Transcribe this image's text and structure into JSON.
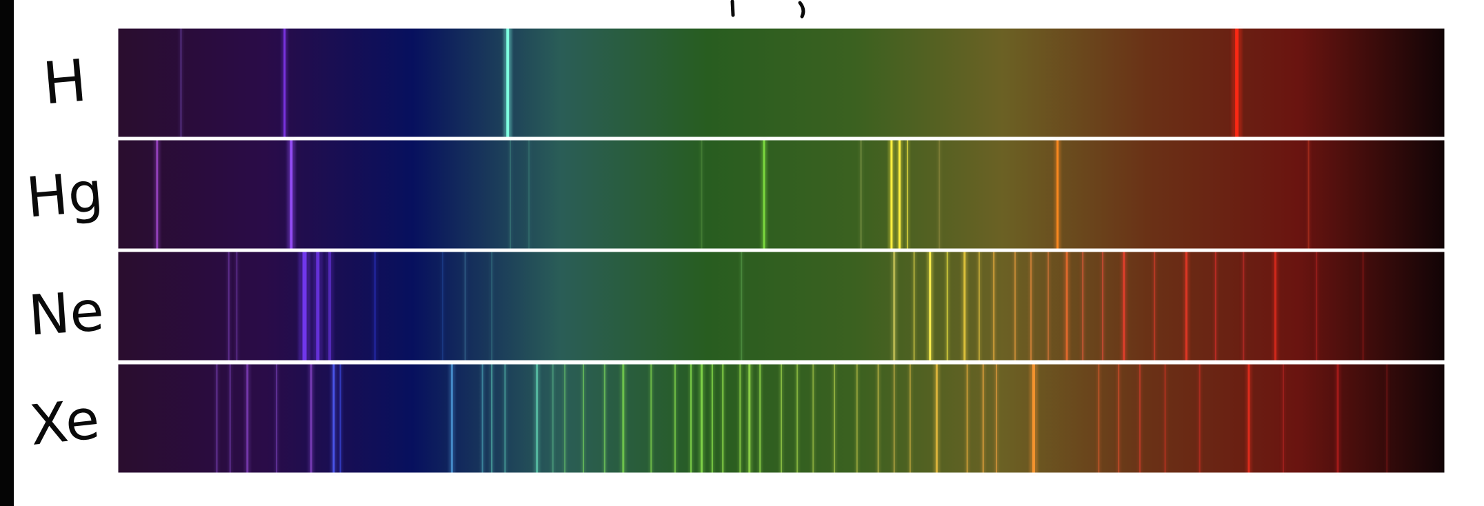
{
  "colors": {
    "background": "#ffffff",
    "left_edge": "#050505",
    "ink": "#0a0a0a",
    "band_border": "#ffffff",
    "gradient": [
      "#2a0d2e",
      "#2a0c48",
      "#07105e",
      "#2a5d57",
      "#285d20",
      "#3b6120",
      "#6b6124",
      "#6a3116",
      "#6a1410",
      "#110406"
    ]
  },
  "spectra": [
    {
      "element": "H",
      "lines": [
        {
          "pos": 0.048,
          "color": "#8a5ad8",
          "w": 2,
          "o": 0.35
        },
        {
          "pos": 0.126,
          "color": "#8c3cff",
          "w": 3,
          "o": 0.75
        },
        {
          "pos": 0.294,
          "color": "#7fffe0",
          "w": 4,
          "o": 1.0
        },
        {
          "pos": 0.843,
          "color": "#ff2a14",
          "w": 5,
          "o": 0.95
        }
      ]
    },
    {
      "element": "Hg",
      "lines": [
        {
          "pos": 0.03,
          "color": "#b050e0",
          "w": 3,
          "o": 0.7
        },
        {
          "pos": 0.131,
          "color": "#9a50ff",
          "w": 4,
          "o": 0.9
        },
        {
          "pos": 0.296,
          "color": "#4fa090",
          "w": 2,
          "o": 0.35
        },
        {
          "pos": 0.31,
          "color": "#4fa090",
          "w": 2,
          "o": 0.25
        },
        {
          "pos": 0.44,
          "color": "#6fb050",
          "w": 2,
          "o": 0.3
        },
        {
          "pos": 0.487,
          "color": "#7fe040",
          "w": 3,
          "o": 0.9
        },
        {
          "pos": 0.56,
          "color": "#a8b860",
          "w": 2,
          "o": 0.35
        },
        {
          "pos": 0.583,
          "color": "#fff040",
          "w": 3,
          "o": 1.0
        },
        {
          "pos": 0.589,
          "color": "#fff040",
          "w": 3,
          "o": 1.0
        },
        {
          "pos": 0.595,
          "color": "#e8e040",
          "w": 2,
          "o": 0.7
        },
        {
          "pos": 0.619,
          "color": "#b0a050",
          "w": 2,
          "o": 0.35
        },
        {
          "pos": 0.708,
          "color": "#ff8a20",
          "w": 3,
          "o": 0.95
        },
        {
          "pos": 0.897,
          "color": "#ff5030",
          "w": 2,
          "o": 0.3
        }
      ]
    },
    {
      "element": "Ne",
      "lines": [
        {
          "pos": 0.084,
          "color": "#9050d8",
          "w": 2,
          "o": 0.4
        },
        {
          "pos": 0.09,
          "color": "#9050d8",
          "w": 2,
          "o": 0.35
        },
        {
          "pos": 0.141,
          "color": "#7a3cff",
          "w": 6,
          "o": 0.85
        },
        {
          "pos": 0.151,
          "color": "#7a3cff",
          "w": 5,
          "o": 0.7
        },
        {
          "pos": 0.16,
          "color": "#7a3cff",
          "w": 4,
          "o": 0.5
        },
        {
          "pos": 0.194,
          "color": "#2a30c0",
          "w": 3,
          "o": 0.5
        },
        {
          "pos": 0.245,
          "color": "#3060c0",
          "w": 2,
          "o": 0.3
        },
        {
          "pos": 0.262,
          "color": "#4c8cb0",
          "w": 2,
          "o": 0.35
        },
        {
          "pos": 0.282,
          "color": "#4c9ca0",
          "w": 2,
          "o": 0.3
        },
        {
          "pos": 0.47,
          "color": "#70c060",
          "w": 2,
          "o": 0.35
        },
        {
          "pos": 0.585,
          "color": "#d8d060",
          "w": 3,
          "o": 0.7
        },
        {
          "pos": 0.6,
          "color": "#f0e050",
          "w": 2,
          "o": 0.5
        },
        {
          "pos": 0.612,
          "color": "#fff050",
          "w": 3,
          "o": 0.95
        },
        {
          "pos": 0.625,
          "color": "#e8e040",
          "w": 2,
          "o": 0.7
        },
        {
          "pos": 0.638,
          "color": "#f0d040",
          "w": 3,
          "o": 0.8
        },
        {
          "pos": 0.649,
          "color": "#e0c040",
          "w": 2,
          "o": 0.6
        },
        {
          "pos": 0.66,
          "color": "#f0b040",
          "w": 2,
          "o": 0.65
        },
        {
          "pos": 0.676,
          "color": "#f0a040",
          "w": 2,
          "o": 0.55
        },
        {
          "pos": 0.688,
          "color": "#f09040",
          "w": 2,
          "o": 0.6
        },
        {
          "pos": 0.701,
          "color": "#f08040",
          "w": 2,
          "o": 0.5
        },
        {
          "pos": 0.715,
          "color": "#ff7030",
          "w": 3,
          "o": 0.7
        },
        {
          "pos": 0.727,
          "color": "#f06040",
          "w": 2,
          "o": 0.55
        },
        {
          "pos": 0.742,
          "color": "#f05040",
          "w": 2,
          "o": 0.55
        },
        {
          "pos": 0.758,
          "color": "#ff4030",
          "w": 3,
          "o": 0.7
        },
        {
          "pos": 0.781,
          "color": "#f04030",
          "w": 2,
          "o": 0.5
        },
        {
          "pos": 0.805,
          "color": "#ff3a2a",
          "w": 3,
          "o": 0.7
        },
        {
          "pos": 0.827,
          "color": "#f03030",
          "w": 2,
          "o": 0.5
        },
        {
          "pos": 0.848,
          "color": "#e03030",
          "w": 2,
          "o": 0.45
        },
        {
          "pos": 0.872,
          "color": "#ff3020",
          "w": 3,
          "o": 0.6
        },
        {
          "pos": 0.903,
          "color": "#d02828",
          "w": 2,
          "o": 0.4
        },
        {
          "pos": 0.938,
          "color": "#c02020",
          "w": 2,
          "o": 0.3
        }
      ]
    },
    {
      "element": "Xe",
      "lines": [
        {
          "pos": 0.075,
          "color": "#9050d8",
          "w": 2,
          "o": 0.45
        },
        {
          "pos": 0.085,
          "color": "#9050d8",
          "w": 2,
          "o": 0.4
        },
        {
          "pos": 0.098,
          "color": "#9c50e0",
          "w": 3,
          "o": 0.55
        },
        {
          "pos": 0.12,
          "color": "#9050d8",
          "w": 2,
          "o": 0.45
        },
        {
          "pos": 0.146,
          "color": "#9c50e0",
          "w": 3,
          "o": 0.6
        },
        {
          "pos": 0.163,
          "color": "#5060ff",
          "w": 3,
          "o": 0.8
        },
        {
          "pos": 0.168,
          "color": "#4050f0",
          "w": 2,
          "o": 0.6
        },
        {
          "pos": 0.252,
          "color": "#50a0e0",
          "w": 3,
          "o": 0.75
        },
        {
          "pos": 0.275,
          "color": "#50b0c0",
          "w": 2,
          "o": 0.55
        },
        {
          "pos": 0.282,
          "color": "#58c0b0",
          "w": 2,
          "o": 0.6
        },
        {
          "pos": 0.292,
          "color": "#58c0b0",
          "w": 2,
          "o": 0.55
        },
        {
          "pos": 0.316,
          "color": "#60d0b0",
          "w": 3,
          "o": 0.75
        },
        {
          "pos": 0.328,
          "color": "#60c090",
          "w": 2,
          "o": 0.45
        },
        {
          "pos": 0.337,
          "color": "#70d070",
          "w": 2,
          "o": 0.5
        },
        {
          "pos": 0.351,
          "color": "#80e060",
          "w": 2,
          "o": 0.55
        },
        {
          "pos": 0.367,
          "color": "#80e060",
          "w": 2,
          "o": 0.6
        },
        {
          "pos": 0.381,
          "color": "#80e050",
          "w": 3,
          "o": 0.7
        },
        {
          "pos": 0.402,
          "color": "#88e050",
          "w": 2,
          "o": 0.6
        },
        {
          "pos": 0.42,
          "color": "#88e050",
          "w": 2,
          "o": 0.65
        },
        {
          "pos": 0.432,
          "color": "#90e850",
          "w": 2,
          "o": 0.7
        },
        {
          "pos": 0.44,
          "color": "#90e850",
          "w": 3,
          "o": 0.75
        },
        {
          "pos": 0.448,
          "color": "#90e850",
          "w": 2,
          "o": 0.7
        },
        {
          "pos": 0.456,
          "color": "#98e850",
          "w": 2,
          "o": 0.7
        },
        {
          "pos": 0.469,
          "color": "#a0e850",
          "w": 2,
          "o": 0.6
        },
        {
          "pos": 0.476,
          "color": "#a0e850",
          "w": 3,
          "o": 0.75
        },
        {
          "pos": 0.484,
          "color": "#a0e850",
          "w": 2,
          "o": 0.65
        },
        {
          "pos": 0.5,
          "color": "#a8e050",
          "w": 2,
          "o": 0.6
        },
        {
          "pos": 0.512,
          "color": "#b0e050",
          "w": 2,
          "o": 0.55
        },
        {
          "pos": 0.524,
          "color": "#b8d850",
          "w": 2,
          "o": 0.5
        },
        {
          "pos": 0.54,
          "color": "#c0d850",
          "w": 2,
          "o": 0.55
        },
        {
          "pos": 0.557,
          "color": "#d0d050",
          "w": 2,
          "o": 0.5
        },
        {
          "pos": 0.573,
          "color": "#d8c850",
          "w": 2,
          "o": 0.55
        },
        {
          "pos": 0.585,
          "color": "#e0c050",
          "w": 2,
          "o": 0.5
        },
        {
          "pos": 0.597,
          "color": "#e8c048",
          "w": 2,
          "o": 0.5
        },
        {
          "pos": 0.617,
          "color": "#f0c040",
          "w": 3,
          "o": 0.8
        },
        {
          "pos": 0.64,
          "color": "#f0b040",
          "w": 2,
          "o": 0.6
        },
        {
          "pos": 0.652,
          "color": "#f0a840",
          "w": 2,
          "o": 0.65
        },
        {
          "pos": 0.662,
          "color": "#f0a040",
          "w": 2,
          "o": 0.6
        },
        {
          "pos": 0.69,
          "color": "#ff9830",
          "w": 4,
          "o": 0.9
        },
        {
          "pos": 0.739,
          "color": "#e86030",
          "w": 2,
          "o": 0.5
        },
        {
          "pos": 0.754,
          "color": "#e85030",
          "w": 2,
          "o": 0.55
        },
        {
          "pos": 0.77,
          "color": "#e84030",
          "w": 2,
          "o": 0.5
        },
        {
          "pos": 0.789,
          "color": "#e03828",
          "w": 2,
          "o": 0.45
        },
        {
          "pos": 0.815,
          "color": "#e03028",
          "w": 2,
          "o": 0.45
        },
        {
          "pos": 0.852,
          "color": "#ff3020",
          "w": 3,
          "o": 0.7
        },
        {
          "pos": 0.878,
          "color": "#d02828",
          "w": 2,
          "o": 0.4
        },
        {
          "pos": 0.919,
          "color": "#d02020",
          "w": 3,
          "o": 0.55
        },
        {
          "pos": 0.956,
          "color": "#b02020",
          "w": 2,
          "o": 0.3
        }
      ]
    }
  ]
}
